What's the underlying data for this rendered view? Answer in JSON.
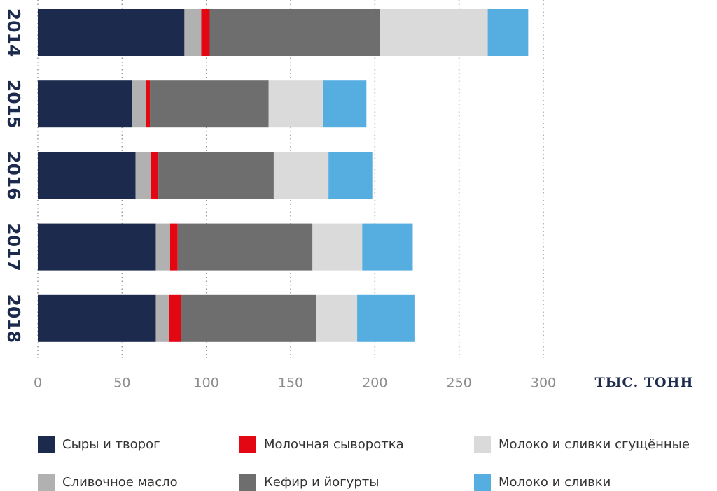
{
  "chart_data": {
    "type": "stacked-barh",
    "categories": [
      "2014",
      "2015",
      "2016",
      "2017",
      "2018"
    ],
    "series": [
      {
        "name": "Сыры и творог",
        "color": "#1c2a4e",
        "values": [
          87,
          56,
          58,
          70,
          70
        ]
      },
      {
        "name": "Сливочное масло",
        "color": "#b1b1b1",
        "values": [
          10,
          8,
          9,
          8.5,
          8
        ]
      },
      {
        "name": "Молочная сыворотка",
        "color": "#e30613",
        "values": [
          5,
          2.5,
          4.5,
          4.5,
          7
        ]
      },
      {
        "name": "Кефир и йогурты",
        "color": "#6e6e6e",
        "values": [
          101,
          70.5,
          68.5,
          80,
          80
        ]
      },
      {
        "name": "Молоко и сливки сгущённые",
        "color": "#dadada",
        "values": [
          64,
          32.5,
          32.5,
          29.5,
          24.5
        ]
      },
      {
        "name": "Молоко и сливки",
        "color": "#56aee0",
        "values": [
          24,
          25.5,
          26,
          30,
          34
        ]
      }
    ],
    "x_label": "ТЫС. ТОНН",
    "xlim": [
      0,
      300
    ],
    "xticks": [
      0,
      50,
      100,
      150,
      200,
      250,
      300
    ],
    "grid": true
  }
}
